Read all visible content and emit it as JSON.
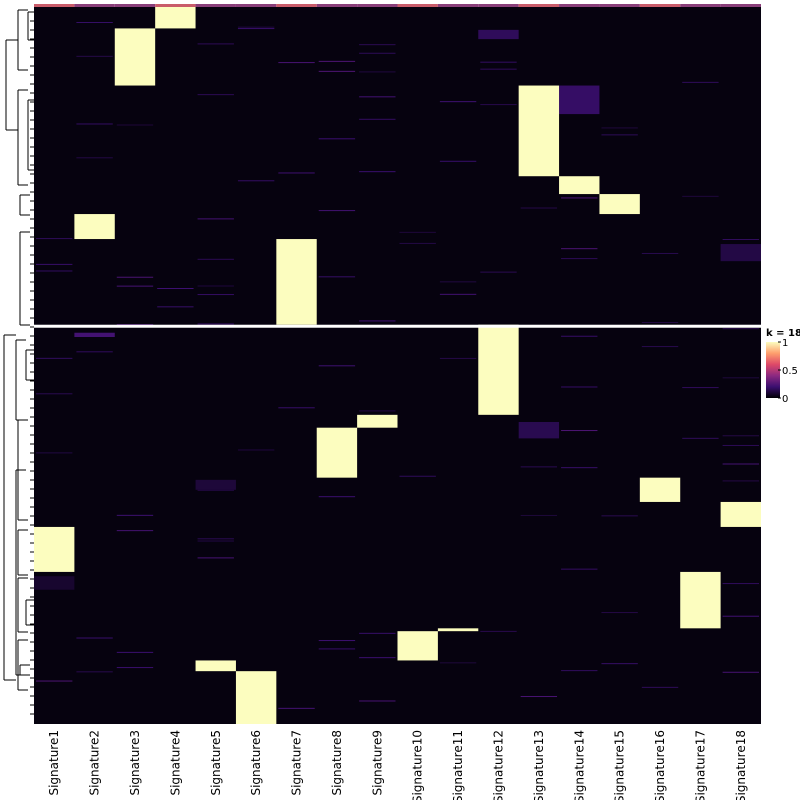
{
  "chart_data": {
    "type": "heatmap",
    "columns": [
      "Signature1",
      "Signature2",
      "Signature3",
      "Signature4",
      "Signature5",
      "Signature6",
      "Signature7",
      "Signature8",
      "Signature9",
      "Signature10",
      "Signature11",
      "Signature12",
      "Signature13",
      "Signature14",
      "Signature15",
      "Signature16",
      "Signature17",
      "Signature18"
    ],
    "value_range": [
      0,
      1
    ],
    "colormap": [
      "#000004",
      "#3b0f70",
      "#8c2981",
      "#de4968",
      "#fe9f6d",
      "#fcfdbf"
    ],
    "background_value": 0.02,
    "row_split_at": 0.445,
    "clusters": [
      {
        "column": "Signature4",
        "row_range": [
          0.0,
          0.03
        ]
      },
      {
        "column": "Signature3",
        "row_range": [
          0.03,
          0.11
        ]
      },
      {
        "column": "Signature13",
        "row_range": [
          0.11,
          0.237
        ]
      },
      {
        "column": "Signature14",
        "row_range": [
          0.237,
          0.262
        ]
      },
      {
        "column": "Signature15",
        "row_range": [
          0.262,
          0.29
        ]
      },
      {
        "column": "Signature2",
        "row_range": [
          0.29,
          0.325
        ]
      },
      {
        "column": "Signature7",
        "row_range": [
          0.325,
          0.445
        ]
      },
      {
        "column": "Signature12",
        "row_range": [
          0.445,
          0.567
        ]
      },
      {
        "column": "Signature9",
        "row_range": [
          0.567,
          0.585
        ]
      },
      {
        "column": "Signature8",
        "row_range": [
          0.585,
          0.655
        ]
      },
      {
        "column": "Signature16",
        "row_range": [
          0.655,
          0.689
        ]
      },
      {
        "column": "Signature18",
        "row_range": [
          0.689,
          0.724
        ]
      },
      {
        "column": "Signature1",
        "row_range": [
          0.724,
          0.787
        ]
      },
      {
        "column": "Signature17",
        "row_range": [
          0.787,
          0.866
        ]
      },
      {
        "column": "Signature11",
        "row_range": [
          0.866,
          0.87
        ]
      },
      {
        "column": "Signature10",
        "row_range": [
          0.87,
          0.911
        ]
      },
      {
        "column": "Signature5",
        "row_range": [
          0.911,
          0.926
        ]
      },
      {
        "column": "Signature6",
        "row_range": [
          0.926,
          1.0
        ]
      }
    ],
    "faint_patches": [
      {
        "column": "Signature14",
        "row_range": [
          0.11,
          0.15
        ],
        "value": 0.18
      },
      {
        "column": "Signature18",
        "row_range": [
          0.332,
          0.356
        ],
        "value": 0.12
      },
      {
        "column": "Signature13",
        "row_range": [
          0.577,
          0.6
        ],
        "value": 0.14
      },
      {
        "column": "Signature5",
        "row_range": [
          0.658,
          0.672
        ],
        "value": 0.1
      },
      {
        "column": "Signature2",
        "row_range": [
          0.452,
          0.458
        ],
        "value": 0.22
      },
      {
        "column": "Signature12",
        "row_range": [
          0.032,
          0.045
        ],
        "value": 0.16
      },
      {
        "column": "Signature1",
        "row_range": [
          0.793,
          0.812
        ],
        "value": 0.08
      }
    ],
    "legend": {
      "title": "k = 18",
      "ticks": [
        1,
        0.5,
        0
      ],
      "position": "right"
    },
    "dendrogram": "left",
    "top_annotation_bar": true
  }
}
